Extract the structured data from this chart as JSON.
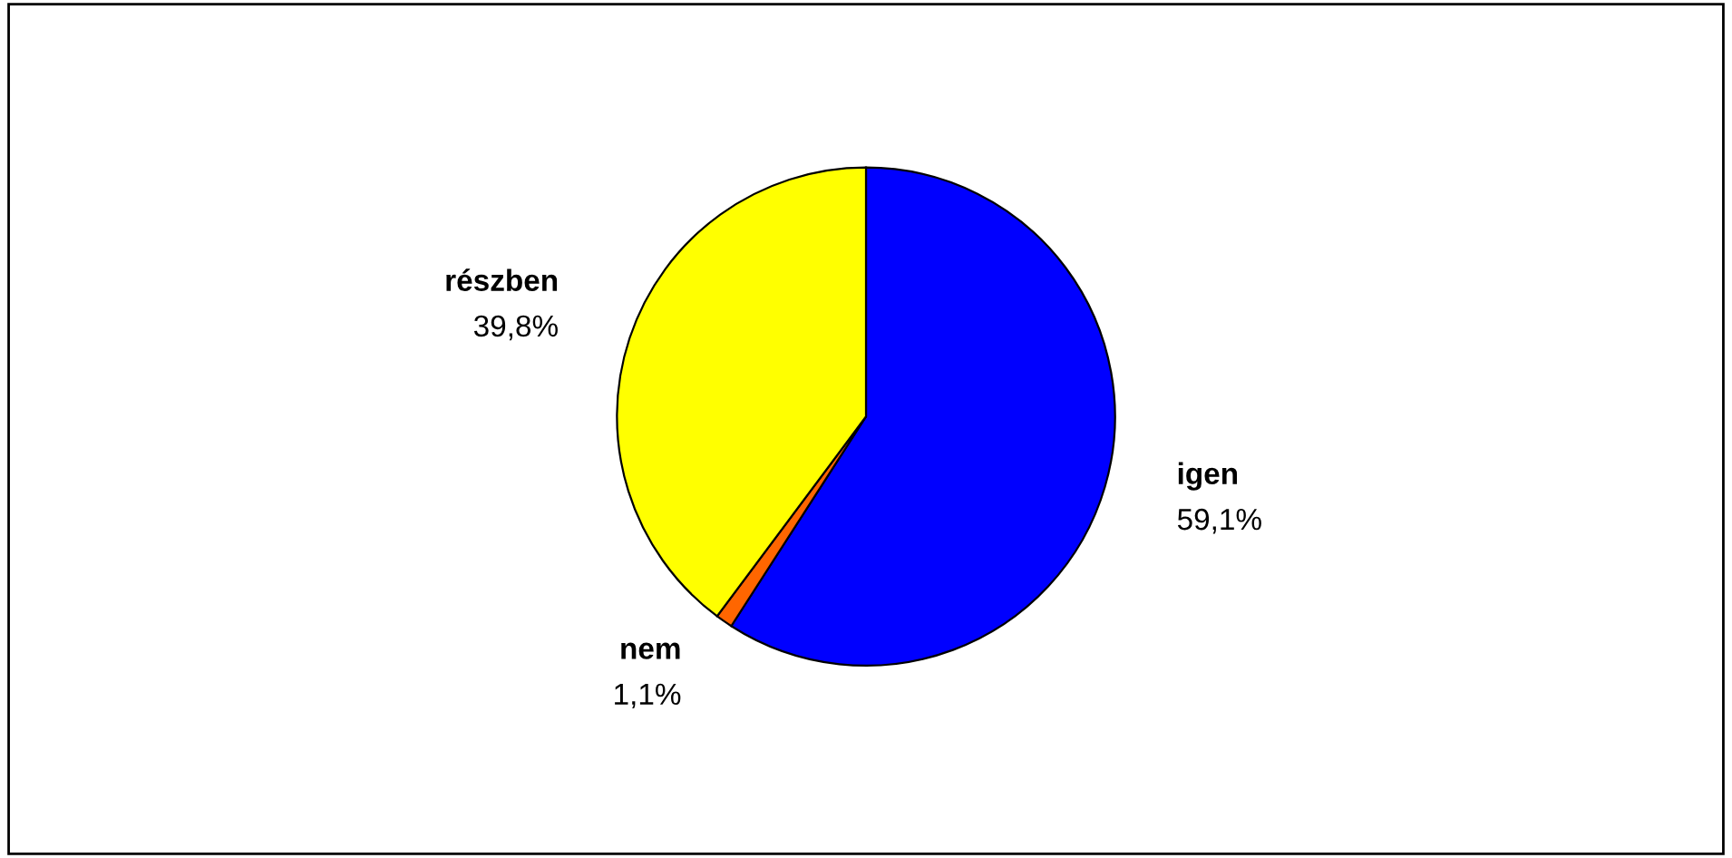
{
  "chart_data": {
    "type": "pie",
    "categories": [
      "igen",
      "nem",
      "részben"
    ],
    "values": [
      59.1,
      1.1,
      39.8
    ],
    "colors": [
      "#0000ff",
      "#ff6600",
      "#ffff00"
    ],
    "value_labels": [
      "59,1%",
      "1,1%",
      "39,8%"
    ],
    "legend": false
  }
}
